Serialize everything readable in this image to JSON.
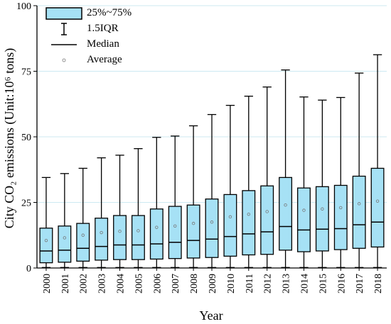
{
  "chart_data": {
    "type": "boxplot",
    "xlabel": "Year",
    "ylabel": "City CO₂ emissions (Unit:10⁶ tons)",
    "ylim": [
      0,
      100
    ],
    "yticks": [
      "0",
      "25",
      "50",
      "75",
      "100"
    ],
    "grid": "horizontal",
    "legend_position": "top-left",
    "colors": {
      "box_fill": "#a6e1f5",
      "grid": "#cde9f2",
      "axis": "#000000"
    },
    "legend": [
      {
        "symbol": "box",
        "label": "25%~75%"
      },
      {
        "symbol": "whisker",
        "label": "1.5IQR"
      },
      {
        "symbol": "median",
        "label": "Median"
      },
      {
        "symbol": "average",
        "label": "Average"
      }
    ],
    "categories": [
      "2000",
      "2001",
      "2002",
      "2003",
      "2004",
      "2005",
      "2006",
      "2007",
      "2008",
      "2009",
      "2010",
      "2011",
      "2012",
      "2013",
      "2014",
      "2015",
      "2016",
      "2017",
      "2018"
    ],
    "q1": [
      2.0,
      2.2,
      2.6,
      3.0,
      3.2,
      3.2,
      3.4,
      3.6,
      3.8,
      4.0,
      4.5,
      5.0,
      5.2,
      6.8,
      6.2,
      6.5,
      7.0,
      7.5,
      8.0
    ],
    "median": [
      6.5,
      6.8,
      7.5,
      8.2,
      8.8,
      8.8,
      9.2,
      9.8,
      10.5,
      11.0,
      12.0,
      13.0,
      13.8,
      15.8,
      14.5,
      14.8,
      15.0,
      16.5,
      17.5
    ],
    "q3": [
      15.2,
      16.0,
      17.0,
      19.0,
      20.0,
      20.0,
      22.5,
      23.5,
      24.0,
      26.3,
      28.0,
      29.5,
      31.3,
      34.5,
      30.5,
      31.0,
      31.5,
      35.0,
      38.0
    ],
    "whisker_low": [
      0.2,
      0.2,
      0.2,
      0.2,
      0.2,
      0.2,
      0.2,
      0.2,
      0.2,
      0.2,
      0.2,
      0.2,
      0.2,
      0.2,
      0.2,
      0.2,
      0.2,
      0.2,
      0.2
    ],
    "whisker_high": [
      34.5,
      36.0,
      38.0,
      42.0,
      43.0,
      45.5,
      49.8,
      50.3,
      54.2,
      58.5,
      62.0,
      65.5,
      69.0,
      75.5,
      65.2,
      64.0,
      65.0,
      74.3,
      81.3
    ],
    "mean": [
      10.5,
      11.5,
      12.5,
      13.5,
      14.0,
      14.2,
      15.5,
      16.0,
      17.0,
      17.5,
      19.5,
      20.5,
      21.5,
      24.0,
      22.0,
      22.5,
      23.0,
      24.5,
      25.5
    ]
  }
}
